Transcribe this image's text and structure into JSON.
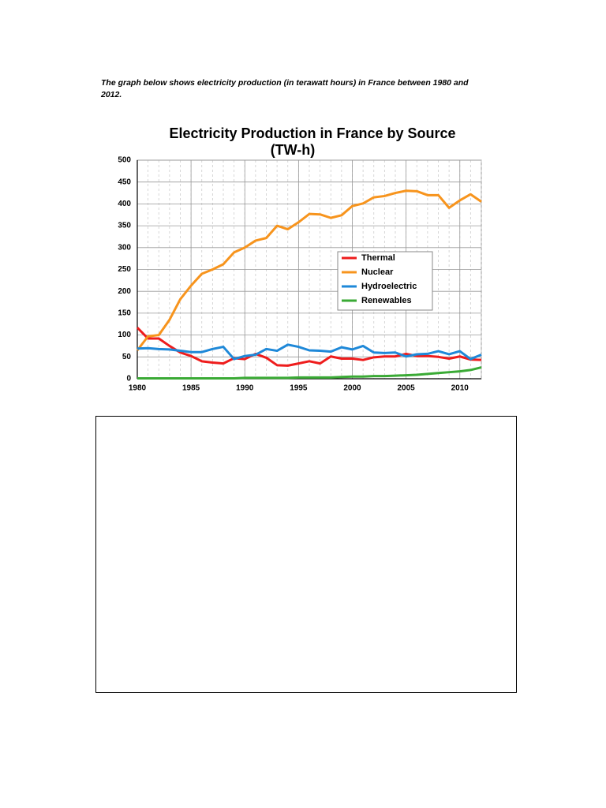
{
  "intro": "The graph below shows electricity production (in terawatt hours) in France between 1980 and 2012.",
  "chart_data": {
    "type": "line",
    "title": "Electricity Production in France by Source",
    "subtitle": "(TW-h)",
    "x": [
      1980,
      1981,
      1982,
      1983,
      1984,
      1985,
      1986,
      1987,
      1988,
      1989,
      1990,
      1991,
      1992,
      1993,
      1994,
      1995,
      1996,
      1997,
      1998,
      1999,
      2000,
      2001,
      2002,
      2003,
      2004,
      2005,
      2006,
      2007,
      2008,
      2009,
      2010,
      2011,
      2012
    ],
    "xlim": [
      1980,
      2012
    ],
    "xticks": [
      1980,
      1985,
      1990,
      1995,
      2000,
      2005,
      2010
    ],
    "ylim": [
      0,
      500
    ],
    "yticks": [
      0,
      50,
      100,
      150,
      200,
      250,
      300,
      350,
      400,
      450,
      500
    ],
    "grid": true,
    "legend": "center-right",
    "series": [
      {
        "name": "Thermal",
        "color": "#ee1c1c",
        "values": [
          117,
          92,
          92,
          75,
          60,
          52,
          40,
          37,
          35,
          47,
          45,
          57,
          48,
          31,
          30,
          35,
          40,
          35,
          51,
          46,
          46,
          43,
          49,
          51,
          51,
          57,
          52,
          52,
          50,
          46,
          51,
          44,
          43
        ]
      },
      {
        "name": "Nuclear",
        "color": "#f7941d",
        "values": [
          65,
          97,
          100,
          135,
          182,
          213,
          240,
          250,
          262,
          289,
          300,
          316,
          322,
          350,
          342,
          358,
          377,
          376,
          368,
          374,
          395,
          401,
          415,
          418,
          425,
          430,
          429,
          420,
          420,
          391,
          408,
          422,
          405
        ]
      },
      {
        "name": "Hydroelectric",
        "color": "#1e88d8",
        "values": [
          69,
          70,
          68,
          67,
          64,
          61,
          61,
          68,
          73,
          45,
          52,
          55,
          68,
          64,
          78,
          73,
          65,
          64,
          62,
          72,
          67,
          75,
          60,
          59,
          60,
          51,
          56,
          57,
          63,
          56,
          63,
          45,
          55
        ]
      },
      {
        "name": "Renewables",
        "color": "#3aaa35",
        "values": [
          1,
          1,
          1,
          1,
          1,
          1,
          1,
          1,
          1,
          1,
          2,
          2,
          2,
          2,
          2,
          3,
          3,
          3,
          3,
          4,
          5,
          5,
          6,
          6,
          7,
          8,
          9,
          11,
          13,
          15,
          17,
          20,
          26
        ]
      }
    ]
  }
}
